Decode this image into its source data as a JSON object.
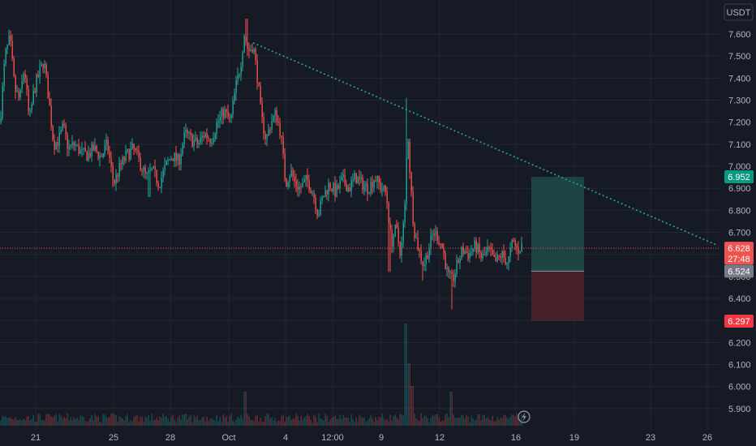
{
  "chart_data": {
    "type": "candlestick",
    "currency_label": "USDT",
    "colors": {
      "background": "#161a25",
      "grid": "#232732",
      "up": "#26a69a",
      "down": "#ef5350",
      "trendline": "#26a69a",
      "profit_zone": "#1f4b48",
      "loss_zone": "#4e2229",
      "current_price_tag": "#f05350",
      "target_tag": "#089981",
      "stop_tag": "#f23645",
      "entry_tag": "#787b86"
    },
    "y_axis": {
      "range": [
        5.84,
        7.72
      ],
      "ticks": [
        "7.600",
        "7.500",
        "7.400",
        "7.300",
        "7.200",
        "7.100",
        "7.000",
        "6.900",
        "6.800",
        "6.700",
        "6.600",
        "6.500",
        "6.400",
        "6.300",
        "6.200",
        "6.100",
        "6.000",
        "5.900"
      ]
    },
    "x_axis": {
      "ticks": [
        "21",
        "25",
        "28",
        "Oct",
        "4",
        "12:00",
        "9",
        "12",
        "16",
        "19",
        "23",
        "26"
      ]
    },
    "price_path": [
      [
        0,
        7.2
      ],
      [
        6,
        7.5
      ],
      [
        12,
        7.58
      ],
      [
        18,
        7.35
      ],
      [
        24,
        7.3
      ],
      [
        30,
        7.45
      ],
      [
        36,
        7.2
      ],
      [
        42,
        7.35
      ],
      [
        48,
        7.42
      ],
      [
        54,
        7.48
      ],
      [
        60,
        7.3
      ],
      [
        66,
        7.1
      ],
      [
        72,
        7.12
      ],
      [
        78,
        7.18
      ],
      [
        84,
        7.08
      ],
      [
        92,
        7.1
      ],
      [
        100,
        7.06
      ],
      [
        108,
        7.05
      ],
      [
        116,
        7.08
      ],
      [
        124,
        7.04
      ],
      [
        132,
        7.1
      ],
      [
        140,
        6.92
      ],
      [
        148,
        7.0
      ],
      [
        156,
        7.05
      ],
      [
        164,
        7.08
      ],
      [
        172,
        7.02
      ],
      [
        180,
        6.95
      ],
      [
        188,
        6.98
      ],
      [
        196,
        6.92
      ],
      [
        204,
        7.0
      ],
      [
        212,
        7.05
      ],
      [
        220,
        7.02
      ],
      [
        228,
        7.15
      ],
      [
        236,
        7.12
      ],
      [
        244,
        7.1
      ],
      [
        252,
        7.15
      ],
      [
        260,
        7.12
      ],
      [
        268,
        7.2
      ],
      [
        276,
        7.25
      ],
      [
        284,
        7.2
      ],
      [
        290,
        7.35
      ],
      [
        296,
        7.45
      ],
      [
        301,
        7.6
      ],
      [
        306,
        7.52
      ],
      [
        312,
        7.55
      ],
      [
        318,
        7.38
      ],
      [
        322,
        7.22
      ],
      [
        328,
        7.12
      ],
      [
        334,
        7.2
      ],
      [
        340,
        7.24
      ],
      [
        346,
        7.15
      ],
      [
        352,
        6.92
      ],
      [
        358,
        6.98
      ],
      [
        364,
        6.92
      ],
      [
        370,
        6.9
      ],
      [
        378,
        6.94
      ],
      [
        386,
        6.88
      ],
      [
        392,
        6.78
      ],
      [
        398,
        6.86
      ],
      [
        406,
        6.92
      ],
      [
        414,
        6.88
      ],
      [
        422,
        6.94
      ],
      [
        430,
        6.9
      ],
      [
        438,
        6.95
      ],
      [
        446,
        6.92
      ],
      [
        454,
        6.9
      ],
      [
        462,
        6.95
      ],
      [
        470,
        6.9
      ],
      [
        476,
        6.88
      ],
      [
        482,
        6.65
      ],
      [
        488,
        6.72
      ],
      [
        494,
        6.6
      ],
      [
        500,
        6.86
      ],
      [
        502,
        7.2
      ],
      [
        506,
        6.92
      ],
      [
        510,
        6.72
      ],
      [
        516,
        6.62
      ],
      [
        522,
        6.55
      ],
      [
        528,
        6.62
      ],
      [
        534,
        6.7
      ],
      [
        540,
        6.68
      ],
      [
        546,
        6.62
      ],
      [
        552,
        6.5
      ],
      [
        558,
        6.48
      ],
      [
        564,
        6.56
      ],
      [
        570,
        6.62
      ],
      [
        578,
        6.6
      ],
      [
        586,
        6.64
      ],
      [
        594,
        6.58
      ],
      [
        602,
        6.62
      ],
      [
        610,
        6.56
      ],
      [
        618,
        6.6
      ],
      [
        626,
        6.56
      ],
      [
        632,
        6.66
      ],
      [
        638,
        6.62
      ],
      [
        644,
        6.64
      ]
    ],
    "spikes": [
      {
        "x": 304,
        "high": 7.67
      },
      {
        "x": 501,
        "high": 7.31
      },
      {
        "x": 557,
        "low": 6.35
      },
      {
        "x": 521,
        "low": 6.48
      },
      {
        "x": 480,
        "low": 6.52
      },
      {
        "x": 184,
        "low": 6.86
      }
    ],
    "volume_spikes": [
      {
        "x": 500,
        "value": 0.9
      },
      {
        "x": 504,
        "value": 0.55
      },
      {
        "x": 508,
        "value": 0.35
      },
      {
        "x": 506,
        "value": 0.3
      },
      {
        "x": 302,
        "value": 0.3
      },
      {
        "x": 556,
        "value": 0.3
      }
    ],
    "trendline": {
      "from": {
        "x": 312,
        "price": 7.56
      },
      "to": {
        "x": 885,
        "price": 6.64
      }
    },
    "position": {
      "x_start": 655,
      "x_end": 720,
      "entry": 6.524,
      "target": 6.952,
      "stop": 6.297
    },
    "last_price": 6.628,
    "price_tags": {
      "target": "6.952",
      "last": "6.628",
      "countdown": "27:48",
      "entry": "6.524",
      "stop": "6.297"
    }
  }
}
